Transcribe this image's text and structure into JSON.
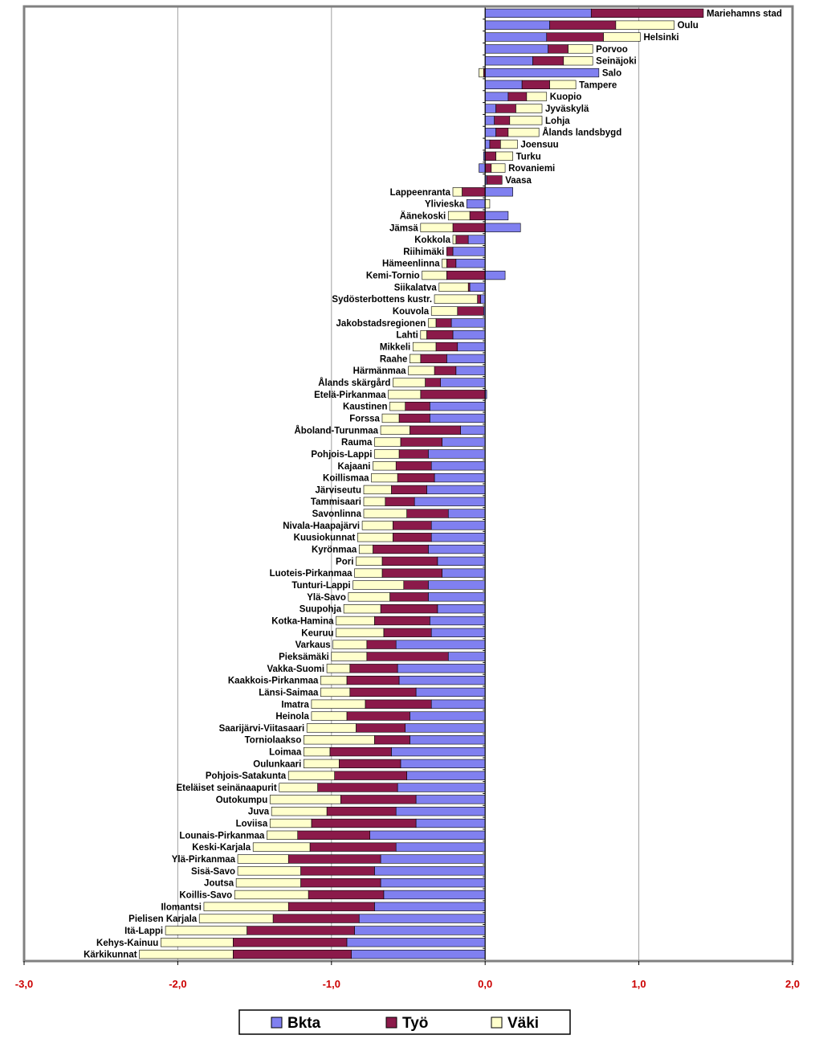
{
  "chart_data": {
    "type": "bar",
    "stacked": true,
    "orientation": "horizontal",
    "x_range": [
      -3.0,
      2.0
    ],
    "x_ticks": [
      "-3,0",
      "-2,0",
      "-1,0",
      "0,0",
      "1,0",
      "2,0"
    ],
    "x_tick_values": [
      -3,
      -2,
      -1,
      0,
      1,
      2
    ],
    "grid": "vertical",
    "legend_position": "bottom",
    "series": [
      {
        "name": "Bkta",
        "color": "#8080f0"
      },
      {
        "name": "Työ",
        "color": "#8b1a4a"
      },
      {
        "name": "Väki",
        "color": "#ffffcc"
      }
    ],
    "categories": [
      {
        "name": "Mariehamns stad",
        "Bkta": 0.69,
        "Työ": 0.73,
        "Väki": 0.0
      },
      {
        "name": "Oulu",
        "Bkta": 0.42,
        "Työ": 0.43,
        "Väki": 0.38
      },
      {
        "name": "Helsinki",
        "Bkta": 0.4,
        "Työ": 0.37,
        "Väki": 0.24
      },
      {
        "name": "Porvoo",
        "Bkta": 0.41,
        "Työ": 0.13,
        "Väki": 0.16
      },
      {
        "name": "Seinäjoki",
        "Bkta": 0.31,
        "Työ": 0.2,
        "Väki": 0.19
      },
      {
        "name": "Salo",
        "Bkta": 0.74,
        "Työ": -0.01,
        "Väki": -0.03
      },
      {
        "name": "Tampere",
        "Bkta": 0.24,
        "Työ": 0.18,
        "Väki": 0.17
      },
      {
        "name": "Kuopio",
        "Bkta": 0.15,
        "Työ": 0.12,
        "Väki": 0.13
      },
      {
        "name": "Jyväskylä",
        "Bkta": 0.07,
        "Työ": 0.13,
        "Väki": 0.17
      },
      {
        "name": "Lohja",
        "Bkta": 0.06,
        "Työ": 0.1,
        "Väki": 0.21
      },
      {
        "name": "Ålands landsbygd",
        "Bkta": 0.07,
        "Työ": 0.08,
        "Väki": 0.2
      },
      {
        "name": "Joensuu",
        "Bkta": 0.03,
        "Työ": 0.07,
        "Väki": 0.11
      },
      {
        "name": "Turku",
        "Bkta": -0.01,
        "Työ": 0.07,
        "Väki": 0.11
      },
      {
        "name": "Rovaniemi",
        "Bkta": -0.04,
        "Työ": 0.04,
        "Väki": 0.09
      },
      {
        "name": "Vaasa",
        "Bkta": 0.01,
        "Työ": 0.1,
        "Väki": 0.0
      },
      {
        "name": "Lappeenranta",
        "Bkta": 0.18,
        "Työ": -0.15,
        "Väki": -0.06
      },
      {
        "name": "Ylivieska",
        "Bkta": -0.12,
        "Työ": 0.0,
        "Väki": 0.03
      },
      {
        "name": "Äänekoski",
        "Bkta": 0.15,
        "Työ": -0.1,
        "Väki": -0.14
      },
      {
        "name": "Jämsä",
        "Bkta": 0.23,
        "Työ": -0.21,
        "Väki": -0.21
      },
      {
        "name": "Kokkola",
        "Bkta": -0.11,
        "Työ": -0.08,
        "Väki": -0.02
      },
      {
        "name": "Riihimäki",
        "Bkta": -0.21,
        "Työ": -0.04,
        "Väki": 0.0
      },
      {
        "name": "Hämeenlinna",
        "Bkta": -0.19,
        "Työ": -0.06,
        "Väki": -0.03
      },
      {
        "name": "Kemi-Tornio",
        "Bkta": 0.13,
        "Työ": -0.25,
        "Väki": -0.16
      },
      {
        "name": "Siikalatva",
        "Bkta": -0.1,
        "Työ": -0.01,
        "Väki": -0.19
      },
      {
        "name": "Sydösterbottens kustr.",
        "Bkta": -0.03,
        "Työ": -0.02,
        "Väki": -0.28
      },
      {
        "name": "Kouvola",
        "Bkta": -0.01,
        "Työ": -0.17,
        "Väki": -0.17
      },
      {
        "name": "Jakobstadsregionen",
        "Bkta": -0.22,
        "Työ": -0.1,
        "Väki": -0.05
      },
      {
        "name": "Lahti",
        "Bkta": -0.21,
        "Työ": -0.17,
        "Väki": -0.04
      },
      {
        "name": "Mikkeli",
        "Bkta": -0.18,
        "Työ": -0.14,
        "Väki": -0.15
      },
      {
        "name": "Raahe",
        "Bkta": -0.25,
        "Työ": -0.17,
        "Väki": -0.07
      },
      {
        "name": "Härmänmaa",
        "Bkta": -0.19,
        "Työ": -0.14,
        "Väki": -0.17
      },
      {
        "name": "Ålands skärgård",
        "Bkta": -0.29,
        "Työ": -0.1,
        "Väki": -0.21
      },
      {
        "name": "Etelä-Pirkanmaa",
        "Bkta": 0.01,
        "Työ": -0.42,
        "Väki": -0.21
      },
      {
        "name": "Kaustinen",
        "Bkta": -0.36,
        "Työ": -0.16,
        "Väki": -0.1
      },
      {
        "name": "Forssa",
        "Bkta": -0.36,
        "Työ": -0.2,
        "Väki": -0.11
      },
      {
        "name": "Åboland-Turunmaa",
        "Bkta": -0.16,
        "Työ": -0.33,
        "Väki": -0.19
      },
      {
        "name": "Rauma",
        "Bkta": -0.28,
        "Työ": -0.27,
        "Väki": -0.17
      },
      {
        "name": "Pohjois-Lappi",
        "Bkta": -0.37,
        "Työ": -0.19,
        "Väki": -0.16
      },
      {
        "name": "Kajaani",
        "Bkta": -0.35,
        "Työ": -0.23,
        "Väki": -0.15
      },
      {
        "name": "Koillismaa",
        "Bkta": -0.33,
        "Työ": -0.24,
        "Väki": -0.17
      },
      {
        "name": "Järviseutu",
        "Bkta": -0.38,
        "Työ": -0.23,
        "Väki": -0.18
      },
      {
        "name": "Tammisaari",
        "Bkta": -0.46,
        "Työ": -0.19,
        "Väki": -0.14
      },
      {
        "name": "Savonlinna",
        "Bkta": -0.24,
        "Työ": -0.27,
        "Väki": -0.28
      },
      {
        "name": "Nivala-Haapajärvi",
        "Bkta": -0.35,
        "Työ": -0.25,
        "Väki": -0.2
      },
      {
        "name": "Kuusiokunnat",
        "Bkta": -0.35,
        "Työ": -0.25,
        "Väki": -0.23
      },
      {
        "name": "Kyrönmaa",
        "Bkta": -0.37,
        "Työ": -0.36,
        "Väki": -0.09
      },
      {
        "name": "Pori",
        "Bkta": -0.31,
        "Työ": -0.36,
        "Väki": -0.17
      },
      {
        "name": "Luoteis-Pirkanmaa",
        "Bkta": -0.28,
        "Työ": -0.39,
        "Väki": -0.18
      },
      {
        "name": "Tunturi-Lappi",
        "Bkta": -0.37,
        "Työ": -0.16,
        "Väki": -0.33
      },
      {
        "name": "Ylä-Savo",
        "Bkta": -0.37,
        "Työ": -0.25,
        "Väki": -0.27
      },
      {
        "name": "Suupohja",
        "Bkta": -0.31,
        "Työ": -0.37,
        "Väki": -0.24
      },
      {
        "name": "Kotka-Hamina",
        "Bkta": -0.36,
        "Työ": -0.36,
        "Väki": -0.25
      },
      {
        "name": "Keuruu",
        "Bkta": -0.35,
        "Työ": -0.31,
        "Väki": -0.31
      },
      {
        "name": "Varkaus",
        "Bkta": -0.58,
        "Työ": -0.19,
        "Väki": -0.22
      },
      {
        "name": "Pieksämäki",
        "Bkta": -0.24,
        "Työ": -0.53,
        "Väki": -0.23
      },
      {
        "name": "Vakka-Suomi",
        "Bkta": -0.57,
        "Työ": -0.31,
        "Väki": -0.15
      },
      {
        "name": "Kaakkois-Pirkanmaa",
        "Bkta": -0.56,
        "Työ": -0.34,
        "Väki": -0.17
      },
      {
        "name": "Länsi-Saimaa",
        "Bkta": -0.45,
        "Työ": -0.43,
        "Väki": -0.19
      },
      {
        "name": "Imatra",
        "Bkta": -0.35,
        "Työ": -0.43,
        "Väki": -0.35
      },
      {
        "name": "Heinola",
        "Bkta": -0.49,
        "Työ": -0.41,
        "Väki": -0.23
      },
      {
        "name": "Saarijärvi-Viitasaari",
        "Bkta": -0.52,
        "Työ": -0.32,
        "Väki": -0.32
      },
      {
        "name": "Torniolaakso",
        "Bkta": -0.49,
        "Työ": -0.23,
        "Väki": -0.46
      },
      {
        "name": "Loimaa",
        "Bkta": -0.61,
        "Työ": -0.4,
        "Väki": -0.17
      },
      {
        "name": "Oulunkaari",
        "Bkta": -0.55,
        "Työ": -0.4,
        "Väki": -0.23
      },
      {
        "name": "Pohjois-Satakunta",
        "Bkta": -0.51,
        "Työ": -0.47,
        "Väki": -0.3
      },
      {
        "name": "Eteläiset seinänaapurit",
        "Bkta": -0.57,
        "Työ": -0.52,
        "Väki": -0.25
      },
      {
        "name": "Outokumpu",
        "Bkta": -0.45,
        "Työ": -0.49,
        "Väki": -0.46
      },
      {
        "name": "Juva",
        "Bkta": -0.58,
        "Työ": -0.45,
        "Väki": -0.36
      },
      {
        "name": "Loviisa",
        "Bkta": -0.45,
        "Työ": -0.68,
        "Väki": -0.27
      },
      {
        "name": "Lounais-Pirkanmaa",
        "Bkta": -0.75,
        "Työ": -0.47,
        "Väki": -0.2
      },
      {
        "name": "Keski-Karjala",
        "Bkta": -0.58,
        "Työ": -0.56,
        "Väki": -0.37
      },
      {
        "name": "Ylä-Pirkanmaa",
        "Bkta": -0.68,
        "Työ": -0.6,
        "Väki": -0.33
      },
      {
        "name": "Sisä-Savo",
        "Bkta": -0.72,
        "Työ": -0.48,
        "Väki": -0.41
      },
      {
        "name": "Joutsa",
        "Bkta": -0.68,
        "Työ": -0.52,
        "Väki": -0.42
      },
      {
        "name": "Koillis-Savo",
        "Bkta": -0.66,
        "Työ": -0.49,
        "Väki": -0.48
      },
      {
        "name": "Ilomantsi",
        "Bkta": -0.72,
        "Työ": -0.56,
        "Väki": -0.55
      },
      {
        "name": "Pielisen Karjala",
        "Bkta": -0.82,
        "Työ": -0.56,
        "Väki": -0.48
      },
      {
        "name": "Itä-Lappi",
        "Bkta": -0.85,
        "Työ": -0.7,
        "Väki": -0.53
      },
      {
        "name": "Kehys-Kainuu",
        "Bkta": -0.9,
        "Työ": -0.74,
        "Väki": -0.47
      },
      {
        "name": "Kärkikunnat",
        "Bkta": -0.87,
        "Työ": -0.77,
        "Väki": -0.61
      }
    ]
  }
}
